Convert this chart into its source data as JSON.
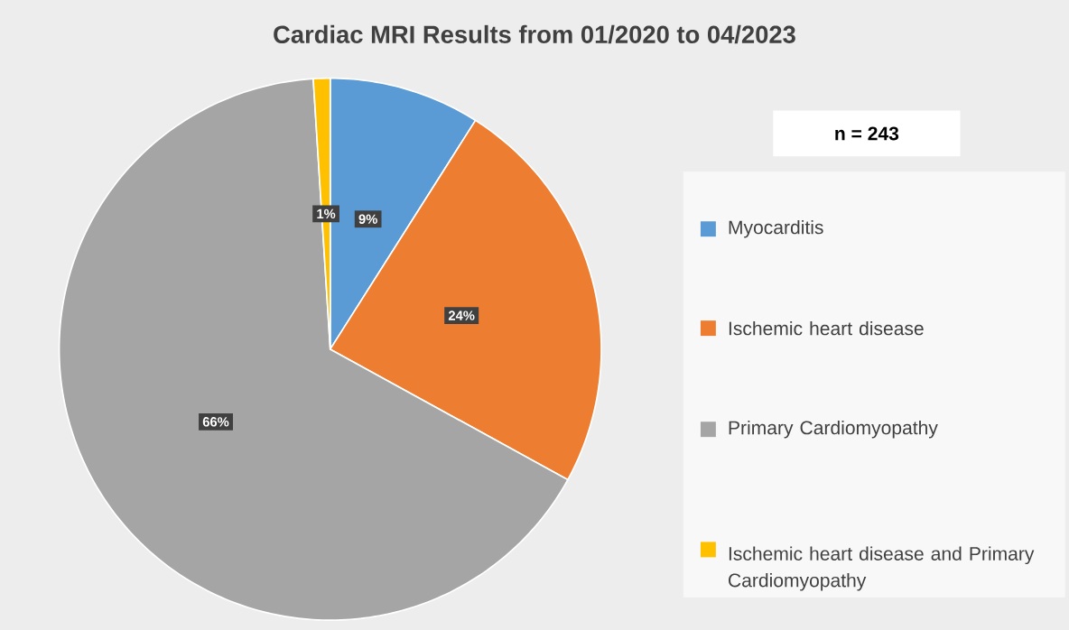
{
  "chart_data": {
    "type": "pie",
    "title": "Cardiac MRI Results from 01/2020 to 04/2023",
    "categories": [
      "Myocarditis",
      "Ischemic heart disease",
      "Primary Cardiomyopathy",
      "Ischemic heart disease and Primary Cardiomyopathy"
    ],
    "values": [
      9,
      24,
      66,
      1
    ],
    "colors": [
      "#5b9bd5",
      "#ed7d31",
      "#a5a5a5",
      "#ffc000"
    ],
    "value_labels": [
      "9%",
      "24%",
      "66%",
      "1%"
    ],
    "annotations": [
      "n = 243"
    ],
    "legend": "right"
  }
}
